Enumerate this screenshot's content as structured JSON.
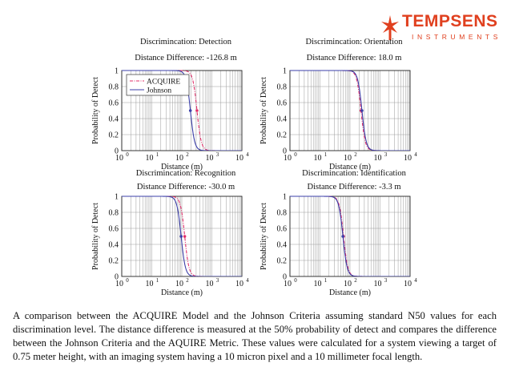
{
  "brand": {
    "name": "TEMPSENS",
    "subtitle": "INSTRUMENTS",
    "color": "#e0401f",
    "icon": "tempsens-logo-icon"
  },
  "chart_data": [
    {
      "type": "line",
      "title": "Discrimincation: Detection",
      "subtitle": "Distance Difference: -126.8 m",
      "xlabel": "Distance (m)",
      "ylabel": "Probability of Detect",
      "xscale": "log",
      "xlim": [
        1,
        10000
      ],
      "ylim": [
        0,
        1
      ],
      "xticks": [
        "10",
        "10",
        "10",
        "10",
        "10"
      ],
      "xtick_exponents": [
        "0",
        "1",
        "2",
        "3",
        "4"
      ],
      "yticks": [
        "0",
        "0.2",
        "0.4",
        "0.6",
        "0.8",
        "1"
      ],
      "legend": [
        "ACQUIRE",
        "Johnson"
      ],
      "legend_position": "top-left",
      "series": [
        {
          "name": "ACQUIRE",
          "style": "dash-dot",
          "color": "#e0306a",
          "x50": 320
        },
        {
          "name": "Johnson",
          "style": "solid",
          "color": "#3b3fa8",
          "x50": 193
        }
      ]
    },
    {
      "type": "line",
      "title": "Discrimincation: Orientation",
      "subtitle": "Distance Difference: 18.0 m",
      "xlabel": "Distance (m)",
      "ylabel": "Probability of Detect",
      "xscale": "log",
      "xlim": [
        1,
        10000
      ],
      "ylim": [
        0,
        1
      ],
      "xticks": [
        "10",
        "10",
        "10",
        "10",
        "10"
      ],
      "xtick_exponents": [
        "0",
        "1",
        "2",
        "3",
        "4"
      ],
      "yticks": [
        "0",
        "0.2",
        "0.4",
        "0.6",
        "0.8",
        "1"
      ],
      "series": [
        {
          "name": "ACQUIRE",
          "style": "dash-dot",
          "color": "#e0306a",
          "x50": 232
        },
        {
          "name": "Johnson",
          "style": "solid",
          "color": "#3b3fa8",
          "x50": 250
        }
      ]
    },
    {
      "type": "line",
      "title": "Discrimincation: Recognition",
      "subtitle": "Distance Difference: -30.0 m",
      "xlabel": "Distance (m)",
      "ylabel": "Probability of Detect",
      "xscale": "log",
      "xlim": [
        1,
        10000
      ],
      "ylim": [
        0,
        1
      ],
      "xticks": [
        "10",
        "10",
        "10",
        "10",
        "10"
      ],
      "xtick_exponents": [
        "0",
        "1",
        "2",
        "3",
        "4"
      ],
      "yticks": [
        "0",
        "0.2",
        "0.4",
        "0.6",
        "0.8",
        "1"
      ],
      "series": [
        {
          "name": "ACQUIRE",
          "style": "dash-dot",
          "color": "#e0306a",
          "x50": 125
        },
        {
          "name": "Johnson",
          "style": "solid",
          "color": "#3b3fa8",
          "x50": 95
        }
      ]
    },
    {
      "type": "line",
      "title": "Discrimincation: Identification",
      "subtitle": "Distance Difference: -3.3 m",
      "xlabel": "Distance (m)",
      "ylabel": "Probability of Detect",
      "xscale": "log",
      "xlim": [
        1,
        10000
      ],
      "ylim": [
        0,
        1
      ],
      "xticks": [
        "10",
        "10",
        "10",
        "10",
        "10"
      ],
      "xtick_exponents": [
        "0",
        "1",
        "2",
        "3",
        "4"
      ],
      "yticks": [
        "0",
        "0.2",
        "0.4",
        "0.6",
        "0.8",
        "1"
      ],
      "series": [
        {
          "name": "ACQUIRE",
          "style": "dash-dot",
          "color": "#e0306a",
          "x50": 61
        },
        {
          "name": "Johnson",
          "style": "solid",
          "color": "#3b3fa8",
          "x50": 58
        }
      ]
    }
  ],
  "caption": "A comparison between the ACQUIRE Model and the Johnson Criteria assuming standard N50 values for each discrimination level. The distance difference is measured at the 50% probability of detect and compares the difference between the Johnson Criteria and the AQUIRE Metric. These values were calculated for a system viewing a target of 0.75 meter height, with an imaging system having a 10 micron pixel and a 10 millimeter focal length."
}
